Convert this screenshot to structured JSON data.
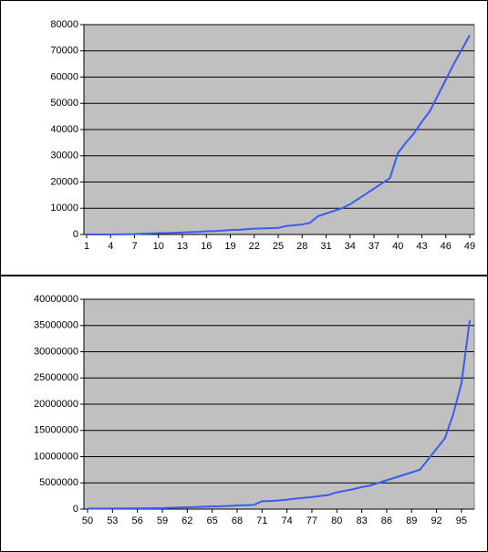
{
  "chart_data": [
    {
      "type": "line",
      "color": "#3a5cf0",
      "grid": true,
      "x": [
        1,
        2,
        3,
        4,
        5,
        6,
        7,
        8,
        9,
        10,
        11,
        12,
        13,
        14,
        15,
        16,
        17,
        18,
        19,
        20,
        21,
        22,
        23,
        24,
        25,
        26,
        27,
        28,
        29,
        30,
        31,
        32,
        33,
        34,
        35,
        36,
        37,
        38,
        39,
        40,
        41,
        42,
        43,
        44,
        45,
        46,
        47,
        48,
        49
      ],
      "values": [
        0,
        0,
        0,
        0,
        50,
        100,
        150,
        300,
        400,
        500,
        550,
        650,
        800,
        900,
        1000,
        1200,
        1300,
        1500,
        1700,
        1800,
        2000,
        2200,
        2300,
        2400,
        2500,
        3200,
        3500,
        3800,
        4500,
        7000,
        8000,
        9000,
        10000,
        11500,
        13500,
        15500,
        17500,
        19500,
        21500,
        31000,
        35000,
        38500,
        43000,
        47000,
        53000,
        59000,
        65000,
        70500,
        76000
      ],
      "xlim": [
        1,
        49
      ],
      "xticks": [
        1,
        4,
        7,
        10,
        13,
        16,
        19,
        22,
        25,
        28,
        31,
        34,
        37,
        40,
        43,
        46,
        49
      ],
      "ylim": [
        0,
        80000
      ],
      "yticks": [
        0,
        10000,
        20000,
        30000,
        40000,
        50000,
        60000,
        70000,
        80000
      ]
    },
    {
      "type": "line",
      "color": "#3a5cf0",
      "grid": true,
      "x": [
        50,
        51,
        52,
        53,
        54,
        55,
        56,
        57,
        58,
        59,
        60,
        61,
        62,
        63,
        64,
        65,
        66,
        67,
        68,
        69,
        70,
        71,
        72,
        73,
        74,
        75,
        76,
        77,
        78,
        79,
        80,
        81,
        82,
        83,
        84,
        85,
        86,
        87,
        88,
        89,
        90,
        91,
        92,
        93,
        94,
        95,
        96
      ],
      "values": [
        100000,
        100000,
        110000,
        120000,
        130000,
        140000,
        150000,
        160000,
        170000,
        180000,
        250000,
        300000,
        350000,
        400000,
        450000,
        500000,
        550000,
        600000,
        700000,
        750000,
        800000,
        1500000,
        1550000,
        1650000,
        1800000,
        2000000,
        2150000,
        2300000,
        2500000,
        2700000,
        3200000,
        3500000,
        3800000,
        4200000,
        4500000,
        5000000,
        5500000,
        6000000,
        6500000,
        7000000,
        7500000,
        9500000,
        11500000,
        13500000,
        18000000,
        24000000,
        36000000
      ],
      "xlim": [
        50,
        96
      ],
      "xticks": [
        50,
        53,
        56,
        59,
        62,
        65,
        68,
        71,
        74,
        77,
        80,
        83,
        86,
        89,
        92,
        95
      ],
      "ylim": [
        0,
        40000000
      ],
      "yticks": [
        0,
        5000000,
        10000000,
        15000000,
        20000000,
        25000000,
        30000000,
        35000000,
        40000000
      ]
    }
  ]
}
